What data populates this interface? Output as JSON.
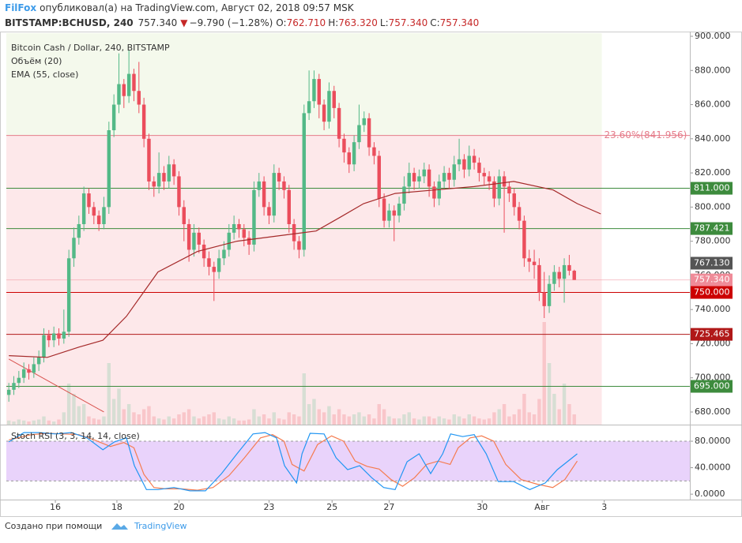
{
  "header": {
    "author": "FilFox",
    "published": "опубликовал(а) на TradingView.com, Август 02, 2018 09:57 MSK",
    "symbol": "BITSTAMP:BCHUSD, 240",
    "last": "757.340",
    "arrow": "▼",
    "change": "−9.790 (−1.28%)",
    "o_label": "O:",
    "o": "762.710",
    "h_label": "H:",
    "h": "763.320",
    "l_label": "L:",
    "l": "757.340",
    "c_label": "C:",
    "c": "757.340"
  },
  "footer": {
    "made_with": "Создано при помощи",
    "brand": "TradingView"
  },
  "chart_data": {
    "type": "candlestick",
    "legend": [
      "Bitcoin Cash / Dollar, 240, BITSTAMP",
      "Объём (20)",
      "EMA (55, close)"
    ],
    "up_color": "#53b987",
    "down_color": "#eb4d5c",
    "xlim": [
      -0.5,
      136.1
    ],
    "xticks": [
      {
        "value": 9.3,
        "label": "16"
      },
      {
        "value": 21.6,
        "label": "18"
      },
      {
        "value": 34,
        "label": "20"
      },
      {
        "value": 52,
        "label": "23"
      },
      {
        "value": 64.6,
        "label": "25"
      },
      {
        "value": 76,
        "label": "27"
      },
      {
        "value": 94.6,
        "label": "30"
      },
      {
        "value": 106.6,
        "label": "Авг"
      },
      {
        "value": 119,
        "label": "3"
      }
    ],
    "ylim": [
      672.6,
      901.85
    ],
    "yticks": [
      {
        "value": 680,
        "label": "680.000"
      },
      {
        "value": 700,
        "label": "700.000"
      },
      {
        "value": 720,
        "label": "720.000"
      },
      {
        "value": 740,
        "label": "740.000"
      },
      {
        "value": 760,
        "label": "760.000"
      },
      {
        "value": 780,
        "label": "780.000"
      },
      {
        "value": 800,
        "label": "800.000"
      },
      {
        "value": 820,
        "label": "820.000"
      },
      {
        "value": 840,
        "label": "840.000"
      },
      {
        "value": 860,
        "label": "860.000"
      },
      {
        "value": 880,
        "label": "880.000"
      },
      {
        "value": 900,
        "label": "900.000"
      }
    ],
    "candles": [
      [
        690,
        697,
        686,
        693
      ],
      [
        693,
        701,
        690,
        697
      ],
      [
        697,
        704,
        694,
        700
      ],
      [
        700,
        709,
        697,
        705
      ],
      [
        705,
        708,
        699,
        703
      ],
      [
        703,
        712,
        700,
        708
      ],
      [
        708,
        716,
        704,
        712
      ],
      [
        712,
        729,
        709,
        725
      ],
      [
        725,
        728,
        718,
        722
      ],
      [
        722,
        730,
        718,
        726
      ],
      [
        726,
        729,
        719,
        723
      ],
      [
        723,
        740,
        720,
        727
      ],
      [
        727,
        775,
        724,
        770
      ],
      [
        770,
        788,
        765,
        782
      ],
      [
        782,
        795,
        778,
        790
      ],
      [
        790,
        812,
        786,
        808
      ],
      [
        808,
        811,
        796,
        800
      ],
      [
        800,
        803,
        790,
        795
      ],
      [
        795,
        798,
        786,
        790
      ],
      [
        790,
        806,
        787,
        800
      ],
      [
        800,
        850,
        796,
        845
      ],
      [
        845,
        866,
        841,
        860
      ],
      [
        860,
        890,
        855,
        872
      ],
      [
        872,
        875,
        858,
        865
      ],
      [
        865,
        892,
        861,
        878
      ],
      [
        878,
        881,
        862,
        868
      ],
      [
        868,
        885,
        855,
        860
      ],
      [
        860,
        864,
        835,
        840
      ],
      [
        840,
        843,
        810,
        815
      ],
      [
        815,
        818,
        806,
        812
      ],
      [
        812,
        832,
        808,
        820
      ],
      [
        820,
        824,
        810,
        815
      ],
      [
        815,
        830,
        811,
        825
      ],
      [
        825,
        828,
        813,
        818
      ],
      [
        818,
        821,
        795,
        800
      ],
      [
        800,
        804,
        780,
        790
      ],
      [
        790,
        793,
        768,
        775
      ],
      [
        775,
        790,
        771,
        785
      ],
      [
        785,
        788,
        773,
        778
      ],
      [
        778,
        781,
        765,
        770
      ],
      [
        770,
        774,
        760,
        765
      ],
      [
        765,
        768,
        745,
        762
      ],
      [
        762,
        775,
        758,
        770
      ],
      [
        770,
        780,
        766,
        775
      ],
      [
        775,
        790,
        771,
        785
      ],
      [
        785,
        795,
        781,
        790
      ],
      [
        790,
        793,
        782,
        787
      ],
      [
        787,
        790,
        777,
        782
      ],
      [
        782,
        786,
        772,
        778
      ],
      [
        778,
        815,
        774,
        810
      ],
      [
        810,
        820,
        806,
        815
      ],
      [
        815,
        818,
        795,
        800
      ],
      [
        800,
        803,
        790,
        795
      ],
      [
        795,
        825,
        791,
        820
      ],
      [
        820,
        823,
        810,
        815
      ],
      [
        815,
        818,
        805,
        810
      ],
      [
        810,
        813,
        785,
        790
      ],
      [
        790,
        793,
        775,
        780
      ],
      [
        780,
        783,
        770,
        775
      ],
      [
        775,
        860,
        771,
        855
      ],
      [
        855,
        880,
        851,
        862
      ],
      [
        862,
        880,
        858,
        875
      ],
      [
        875,
        878,
        852,
        860
      ],
      [
        860,
        863,
        845,
        850
      ],
      [
        850,
        873,
        846,
        868
      ],
      [
        868,
        871,
        852,
        858
      ],
      [
        858,
        861,
        835,
        840
      ],
      [
        840,
        843,
        826,
        832
      ],
      [
        832,
        835,
        820,
        825
      ],
      [
        825,
        842,
        821,
        838
      ],
      [
        838,
        860,
        834,
        848
      ],
      [
        848,
        856,
        844,
        852
      ],
      [
        852,
        855,
        830,
        835
      ],
      [
        835,
        838,
        825,
        830
      ],
      [
        830,
        833,
        800,
        805
      ],
      [
        805,
        808,
        788,
        792
      ],
      [
        792,
        802,
        788,
        798
      ],
      [
        798,
        801,
        780,
        795
      ],
      [
        795,
        806,
        791,
        802
      ],
      [
        802,
        818,
        798,
        812
      ],
      [
        812,
        826,
        808,
        820
      ],
      [
        820,
        823,
        810,
        815
      ],
      [
        815,
        822,
        811,
        818
      ],
      [
        818,
        826,
        814,
        822
      ],
      [
        822,
        825,
        806,
        812
      ],
      [
        812,
        815,
        800,
        805
      ],
      [
        805,
        819,
        801,
        815
      ],
      [
        815,
        824,
        811,
        820
      ],
      [
        820,
        823,
        811,
        816
      ],
      [
        816,
        830,
        812,
        825
      ],
      [
        825,
        840,
        821,
        828
      ],
      [
        828,
        831,
        817,
        822
      ],
      [
        822,
        836,
        818,
        830
      ],
      [
        830,
        834,
        822,
        826
      ],
      [
        826,
        829,
        815,
        820
      ],
      [
        820,
        823,
        813,
        818
      ],
      [
        818,
        821,
        810,
        815
      ],
      [
        815,
        818,
        800,
        805
      ],
      [
        805,
        822,
        801,
        818
      ],
      [
        818,
        821,
        785,
        812
      ],
      [
        812,
        815,
        803,
        808
      ],
      [
        808,
        811,
        795,
        800
      ],
      [
        800,
        803,
        787,
        792
      ],
      [
        792,
        795,
        765,
        770
      ],
      [
        770,
        775,
        762,
        768
      ],
      [
        768,
        775,
        758,
        766
      ],
      [
        766,
        770,
        745,
        750
      ],
      [
        750,
        762,
        735,
        742
      ],
      [
        742,
        760,
        738,
        755
      ],
      [
        755,
        766,
        751,
        762
      ],
      [
        762,
        765,
        753,
        758
      ],
      [
        758,
        770,
        744,
        766
      ],
      [
        766,
        772,
        760,
        762.71
      ],
      [
        762.71,
        763.32,
        757.34,
        757.34
      ]
    ],
    "volume": {
      "vlim": [
        0,
        100
      ],
      "values": [
        4,
        3,
        5,
        4,
        3,
        4,
        5,
        8,
        4,
        3,
        5,
        12,
        40,
        30,
        18,
        20,
        8,
        6,
        5,
        8,
        60,
        25,
        35,
        15,
        20,
        12,
        10,
        15,
        18,
        8,
        6,
        5,
        8,
        6,
        10,
        12,
        15,
        8,
        6,
        8,
        10,
        12,
        6,
        5,
        8,
        6,
        4,
        4,
        5,
        15,
        8,
        10,
        6,
        12,
        6,
        5,
        12,
        10,
        8,
        50,
        20,
        25,
        15,
        12,
        18,
        10,
        15,
        10,
        8,
        10,
        12,
        8,
        10,
        6,
        20,
        15,
        8,
        6,
        6,
        10,
        12,
        6,
        5,
        8,
        8,
        6,
        8,
        6,
        5,
        10,
        8,
        6,
        10,
        8,
        6,
        5,
        6,
        12,
        15,
        20,
        8,
        10,
        15,
        30,
        12,
        10,
        25,
        100,
        60,
        30,
        15,
        40,
        20,
        10
      ]
    },
    "ema": {
      "color": "#a52a2a",
      "x": [
        0,
        7.7,
        14,
        18.8,
        23.5,
        29.8,
        37.7,
        45.6,
        53.5,
        61.4,
        66.2,
        70.9,
        77.2,
        85.1,
        93,
        100.9,
        108.8,
        113.6,
        118.3
      ],
      "values": [
        713,
        712,
        718,
        722,
        736,
        762,
        774,
        780,
        783,
        786,
        794,
        802,
        808,
        810,
        812,
        815,
        810,
        802,
        796
      ]
    },
    "trendline": {
      "color": "#d9534f",
      "x": [
        0,
        19
      ],
      "values": [
        711,
        680
      ]
    },
    "fib": {
      "value": 841.956,
      "label": "23.60%(841.956)",
      "x_end": 118.5,
      "color": "#e57c8a"
    },
    "levels": [
      {
        "value": 811,
        "label": "811.000",
        "color": "#3d8b3d"
      },
      {
        "value": 787.421,
        "label": "787.421",
        "color": "#3d8b3d"
      },
      {
        "value": 767.13,
        "label": "767.130",
        "color": "#555555",
        "line": false
      },
      {
        "value": 757.34,
        "label": "757.340",
        "color": "#ef8b98"
      },
      {
        "value": 750,
        "label": "750.000",
        "color": "#cc0000"
      },
      {
        "value": 725.465,
        "label": "725.465",
        "color": "#b01818"
      },
      {
        "value": 695,
        "label": "695.000",
        "color": "#3d8b3d"
      }
    ],
    "stoch": {
      "title": "Stoch RSI (3, 3, 14, 14, close)",
      "ylim": [
        -7,
        102.7
      ],
      "band": [
        20,
        80
      ],
      "yticks": [
        {
          "value": 0,
          "label": "0.0000"
        },
        {
          "value": 40,
          "label": "40.0000"
        },
        {
          "value": 80,
          "label": "80.0000"
        }
      ],
      "k": {
        "color": "#2196f3",
        "x": [
          0,
          3,
          6,
          9.3,
          12.5,
          15.6,
          18.8,
          21.1,
          23.5,
          25.1,
          27.5,
          29.8,
          33,
          36.2,
          39.3,
          42.5,
          45.6,
          48.8,
          51.2,
          53.5,
          55.1,
          57.5,
          58.6,
          60.2,
          63,
          65.4,
          67.7,
          70.1,
          72.5,
          74.9,
          77.2,
          79.6,
          82,
          84.3,
          86.7,
          88.3,
          90.7,
          93,
          95.4,
          97.8,
          100.9,
          104.1,
          107.2,
          109.6,
          113.6
        ],
        "values": [
          79,
          93,
          93,
          91,
          93,
          85,
          67,
          79,
          85,
          43,
          7,
          7,
          10,
          5,
          5,
          31,
          61,
          91,
          93,
          85,
          43,
          17,
          61,
          92,
          91,
          55,
          37,
          43,
          25,
          10,
          7,
          49,
          61,
          31,
          61,
          91,
          87,
          90,
          61,
          19,
          19,
          7,
          17,
          37,
          61
        ]
      },
      "d": {
        "color": "#f57c50",
        "x": [
          0,
          4.5,
          8,
          11,
          14,
          17.1,
          20.3,
          23,
          25,
          27,
          29,
          31.3,
          34.5,
          37.7,
          40.8,
          44,
          47.1,
          50.3,
          52.7,
          55,
          56.6,
          59,
          61.7,
          64.5,
          66.9,
          69.2,
          71.6,
          74,
          76.4,
          78.7,
          81.1,
          83.5,
          85.8,
          88.2,
          89.8,
          92.2,
          94.5,
          96.9,
          99.3,
          102.4,
          105.6,
          108.7,
          111.1,
          113.6
        ],
        "values": [
          82,
          90,
          92,
          91,
          90,
          82,
          72,
          78,
          70,
          30,
          10,
          8,
          8,
          6,
          10,
          28,
          55,
          85,
          90,
          80,
          45,
          35,
          75,
          88,
          80,
          50,
          42,
          38,
          22,
          12,
          25,
          45,
          50,
          45,
          70,
          85,
          88,
          80,
          45,
          22,
          15,
          10,
          22,
          50
        ]
      }
    }
  }
}
